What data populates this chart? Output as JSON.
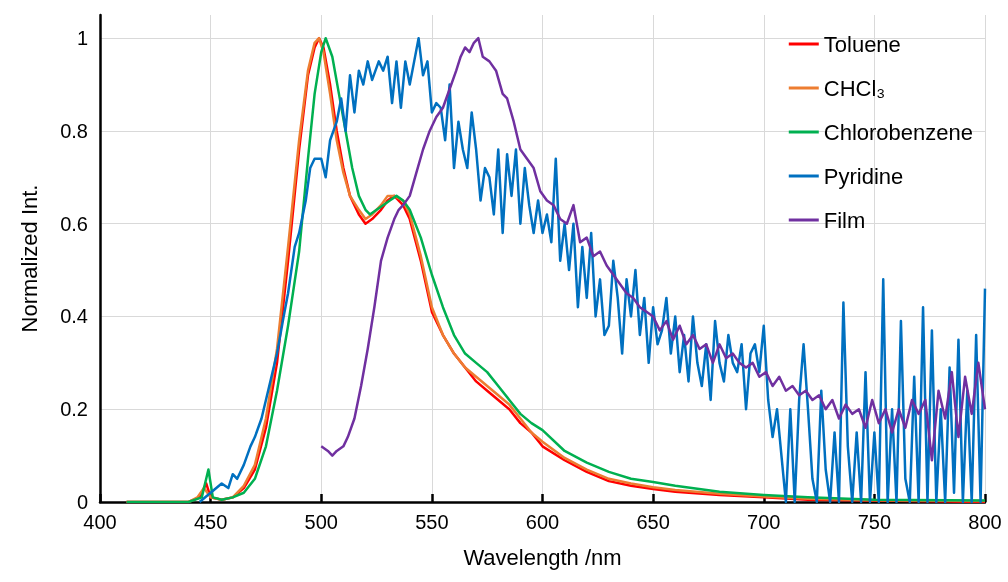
{
  "chart_data": {
    "type": "line",
    "xlabel": "Wavelength /nm",
    "ylabel": "Normalized Int.",
    "xlim": [
      400,
      800
    ],
    "xticks": [
      400,
      450,
      500,
      550,
      600,
      650,
      700,
      750,
      800
    ],
    "ylim": [
      0,
      1.05
    ],
    "yticks": [
      0,
      0.2,
      0.4,
      0.6,
      0.8,
      1
    ],
    "grid": true,
    "legend": "top right",
    "marker": "none",
    "series": [
      {
        "name": "Toluene",
        "color": "#ff0000",
        "x": [
          412,
          440,
          445,
          448,
          450,
          455,
          460,
          465,
          470,
          475,
          480,
          485,
          490,
          494,
          497,
          499,
          501,
          504,
          507,
          510,
          513,
          517,
          520,
          523,
          527,
          530,
          533,
          537,
          540,
          545,
          550,
          555,
          560,
          565,
          570,
          575,
          580,
          585,
          590,
          595,
          600,
          610,
          620,
          630,
          640,
          650,
          660,
          680,
          700,
          720,
          750,
          800
        ],
        "values": [
          0,
          0,
          0.01,
          0.04,
          0.01,
          0.005,
          0.01,
          0.03,
          0.07,
          0.16,
          0.3,
          0.52,
          0.76,
          0.92,
          0.98,
          1.0,
          0.98,
          0.9,
          0.8,
          0.72,
          0.66,
          0.62,
          0.6,
          0.61,
          0.63,
          0.65,
          0.66,
          0.64,
          0.61,
          0.52,
          0.41,
          0.36,
          0.32,
          0.29,
          0.26,
          0.24,
          0.22,
          0.2,
          0.17,
          0.15,
          0.12,
          0.09,
          0.065,
          0.045,
          0.035,
          0.028,
          0.022,
          0.015,
          0.01,
          0.005,
          0.003,
          0
        ]
      },
      {
        "name": "CHCl₃",
        "color": "#ed7d31",
        "x": [
          412,
          440,
          444,
          447,
          450,
          455,
          460,
          465,
          470,
          475,
          480,
          485,
          490,
          494,
          497,
          499,
          501,
          504,
          507,
          510,
          513,
          517,
          520,
          523,
          527,
          530,
          533,
          537,
          540,
          545,
          550,
          555,
          560,
          565,
          570,
          575,
          580,
          585,
          590,
          595,
          600,
          610,
          620,
          630,
          640,
          650,
          660,
          680,
          700,
          720,
          750,
          800
        ],
        "values": [
          0,
          0,
          0.01,
          0.03,
          0.01,
          0.005,
          0.01,
          0.035,
          0.08,
          0.18,
          0.33,
          0.55,
          0.78,
          0.93,
          0.99,
          1.0,
          0.97,
          0.88,
          0.78,
          0.71,
          0.66,
          0.63,
          0.61,
          0.62,
          0.64,
          0.66,
          0.66,
          0.65,
          0.62,
          0.53,
          0.42,
          0.36,
          0.32,
          0.29,
          0.27,
          0.25,
          0.23,
          0.21,
          0.18,
          0.15,
          0.13,
          0.095,
          0.07,
          0.05,
          0.04,
          0.032,
          0.026,
          0.018,
          0.012,
          0.007,
          0.004,
          0.002
        ]
      },
      {
        "name": "Chlorobenzene",
        "color": "#00b050",
        "x": [
          412,
          440,
          446,
          449,
          451,
          455,
          460,
          465,
          470,
          475,
          480,
          485,
          490,
          494,
          497,
          500,
          502,
          505,
          508,
          511,
          514,
          517,
          520,
          522,
          525,
          528,
          531,
          534,
          537,
          540,
          545,
          550,
          555,
          560,
          565,
          570,
          575,
          580,
          585,
          590,
          595,
          600,
          610,
          620,
          630,
          640,
          650,
          660,
          680,
          700,
          720,
          750,
          800
        ],
        "values": [
          0,
          0,
          0.01,
          0.07,
          0.01,
          0.005,
          0.01,
          0.02,
          0.05,
          0.12,
          0.24,
          0.38,
          0.54,
          0.74,
          0.88,
          0.97,
          1.0,
          0.96,
          0.88,
          0.8,
          0.72,
          0.66,
          0.63,
          0.62,
          0.63,
          0.64,
          0.65,
          0.66,
          0.65,
          0.63,
          0.57,
          0.49,
          0.42,
          0.36,
          0.32,
          0.3,
          0.28,
          0.25,
          0.22,
          0.19,
          0.17,
          0.155,
          0.11,
          0.085,
          0.065,
          0.05,
          0.043,
          0.035,
          0.022,
          0.015,
          0.01,
          0.005,
          0.003
        ]
      },
      {
        "name": "Pyridine",
        "color": "#0070c0",
        "x": [
          445,
          450,
          455,
          458,
          460,
          462,
          465,
          468,
          470,
          473,
          475,
          478,
          480,
          483,
          485,
          488,
          490,
          493,
          495,
          497,
          500,
          502,
          504,
          507,
          509,
          511,
          513,
          515,
          517,
          519,
          521,
          523,
          526,
          528,
          530,
          532,
          534,
          536,
          538,
          540,
          542,
          544,
          546,
          548,
          550,
          552,
          554,
          556,
          558,
          560,
          562,
          564,
          566,
          568,
          570,
          572,
          574,
          576,
          578,
          580,
          582,
          584,
          586,
          588,
          590,
          592,
          594,
          596,
          598,
          600,
          602,
          604,
          606,
          608,
          610,
          612,
          614,
          616,
          618,
          620,
          622,
          624,
          626,
          628,
          630,
          632,
          634,
          636,
          638,
          640,
          642,
          644,
          646,
          648,
          650,
          652,
          654,
          656,
          658,
          660,
          662,
          664,
          666,
          668,
          670,
          672,
          674,
          676,
          678,
          680,
          682,
          684,
          686,
          688,
          690,
          692,
          694,
          696,
          698,
          700,
          702,
          704,
          706,
          708,
          710,
          712,
          714,
          716,
          718,
          720,
          722,
          724,
          726,
          728,
          730,
          732,
          734,
          736,
          738,
          740,
          742,
          744,
          746,
          748,
          750,
          752,
          754,
          756,
          758,
          760,
          762,
          764,
          766,
          768,
          770,
          772,
          774,
          776,
          778,
          780,
          782,
          784,
          786,
          788,
          790,
          792,
          794,
          796,
          798,
          800
        ],
        "values": [
          0,
          0.02,
          0.04,
          0.03,
          0.06,
          0.05,
          0.08,
          0.12,
          0.14,
          0.18,
          0.22,
          0.28,
          0.32,
          0.4,
          0.45,
          0.55,
          0.58,
          0.65,
          0.72,
          0.74,
          0.74,
          0.7,
          0.78,
          0.82,
          0.87,
          0.8,
          0.92,
          0.84,
          0.93,
          0.9,
          0.95,
          0.91,
          0.95,
          0.93,
          0.96,
          0.86,
          0.95,
          0.85,
          0.95,
          0.9,
          0.95,
          1.0,
          0.92,
          0.95,
          0.84,
          0.86,
          0.85,
          0.78,
          0.9,
          0.72,
          0.82,
          0.76,
          0.72,
          0.84,
          0.76,
          0.65,
          0.72,
          0.7,
          0.62,
          0.76,
          0.58,
          0.75,
          0.66,
          0.76,
          0.6,
          0.72,
          0.64,
          0.58,
          0.65,
          0.58,
          0.62,
          0.56,
          0.74,
          0.52,
          0.6,
          0.5,
          0.6,
          0.42,
          0.55,
          0.44,
          0.58,
          0.4,
          0.48,
          0.36,
          0.38,
          0.52,
          0.44,
          0.32,
          0.48,
          0.4,
          0.5,
          0.36,
          0.44,
          0.3,
          0.42,
          0.34,
          0.37,
          0.44,
          0.32,
          0.4,
          0.28,
          0.36,
          0.26,
          0.4,
          0.3,
          0.25,
          0.34,
          0.22,
          0.39,
          0.3,
          0.26,
          0.36,
          0.3,
          0.28,
          0.34,
          0.2,
          0.32,
          0.34,
          0.28,
          0.38,
          0.22,
          0.14,
          0.2,
          0.1,
          0,
          0.2,
          0,
          0.22,
          0.34,
          0.2,
          0.05,
          0,
          0.24,
          0.07,
          0,
          0.15,
          0,
          0.43,
          0.12,
          0,
          0.15,
          0,
          0.28,
          0,
          0.15,
          0,
          0.48,
          0,
          0.2,
          0,
          0.39,
          0.05,
          0,
          0.27,
          0,
          0.42,
          0,
          0.37,
          0,
          0.2,
          0,
          0.29,
          0.02,
          0.35,
          0,
          0.24,
          0,
          0.36,
          0,
          0.46
        ]
      },
      {
        "name": "Film",
        "color": "#7030a0",
        "x": [
          500,
          503,
          505,
          507,
          510,
          512,
          515,
          518,
          521,
          524,
          527,
          530,
          533,
          535,
          537,
          540,
          543,
          546,
          549,
          552,
          555,
          558,
          561,
          563,
          565,
          567,
          569,
          571,
          573,
          576,
          579,
          582,
          584,
          587,
          590,
          593,
          596,
          599,
          602,
          605,
          608,
          611,
          614,
          617,
          620,
          623,
          626,
          629,
          632,
          635,
          638,
          641,
          644,
          647,
          650,
          653,
          656,
          659,
          662,
          665,
          668,
          671,
          674,
          677,
          680,
          683,
          686,
          689,
          692,
          695,
          698,
          701,
          704,
          707,
          710,
          713,
          716,
          719,
          722,
          725,
          728,
          731,
          734,
          737,
          740,
          743,
          746,
          749,
          752,
          755,
          758,
          761,
          764,
          767,
          770,
          773,
          776,
          779,
          782,
          785,
          788,
          791,
          794,
          797,
          800
        ],
        "values": [
          0.12,
          0.11,
          0.1,
          0.11,
          0.12,
          0.14,
          0.18,
          0.25,
          0.33,
          0.42,
          0.52,
          0.57,
          0.61,
          0.63,
          0.64,
          0.66,
          0.71,
          0.76,
          0.8,
          0.83,
          0.85,
          0.89,
          0.93,
          0.96,
          0.98,
          0.97,
          0.99,
          1.0,
          0.96,
          0.95,
          0.93,
          0.88,
          0.87,
          0.82,
          0.76,
          0.74,
          0.72,
          0.67,
          0.65,
          0.64,
          0.61,
          0.6,
          0.64,
          0.56,
          0.57,
          0.53,
          0.54,
          0.51,
          0.49,
          0.47,
          0.45,
          0.44,
          0.42,
          0.41,
          0.4,
          0.37,
          0.39,
          0.35,
          0.38,
          0.34,
          0.36,
          0.33,
          0.34,
          0.3,
          0.34,
          0.31,
          0.32,
          0.3,
          0.29,
          0.3,
          0.27,
          0.28,
          0.25,
          0.27,
          0.24,
          0.25,
          0.23,
          0.24,
          0.22,
          0.23,
          0.2,
          0.22,
          0.18,
          0.21,
          0.19,
          0.2,
          0.16,
          0.22,
          0.17,
          0.2,
          0.15,
          0.2,
          0.16,
          0.22,
          0.19,
          0.22,
          0.09,
          0.24,
          0.18,
          0.28,
          0.14,
          0.27,
          0.19,
          0.3,
          0.2
        ]
      }
    ]
  }
}
